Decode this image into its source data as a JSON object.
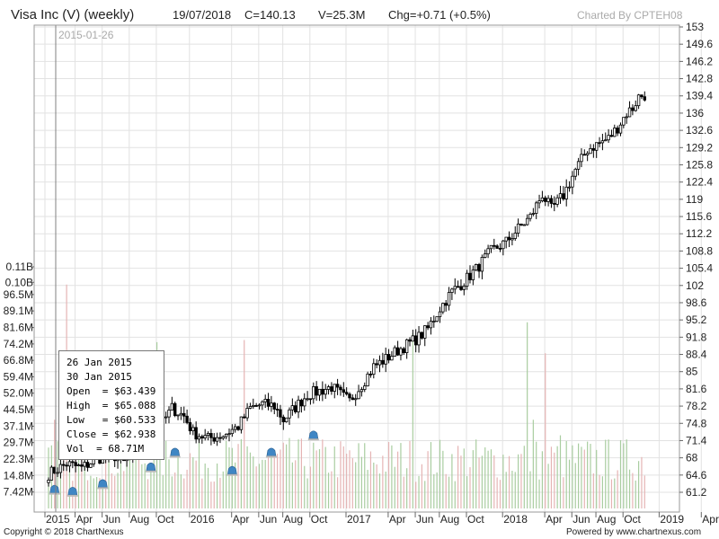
{
  "header": {
    "title": "Visa Inc (V) (weekly)",
    "date": "19/07/2018",
    "close": "C=140.13",
    "volume": "V=25.3M",
    "change": "Chg=+0.71 (+0.5%)",
    "brand": "Charted By CPTEH08"
  },
  "cursor_date": "2015-01-26",
  "tooltip": {
    "line1": "26 Jan 2015",
    "line2": "30 Jan 2015",
    "open": "Open  = $63.439",
    "high": "High  = $65.088",
    "low": "Low   = $60.533",
    "close": "Close = $62.938",
    "vol": "Vol  = 68.71M"
  },
  "footer": {
    "copyright": "Copyright © 2018 ChartNexus",
    "powered": "Powered by www.chartnexus.com"
  },
  "chart_data": {
    "type": "candlestick",
    "price_axis": {
      "min": 61.2,
      "max": 153,
      "ticks": [
        "153",
        "149.6",
        "146.2",
        "142.8",
        "139.4",
        "136",
        "132.6",
        "129.2",
        "125.8",
        "122.4",
        "119",
        "115.6",
        "112.2",
        "108.8",
        "105.4",
        "102",
        "98.6",
        "95.2",
        "91.8",
        "88.4",
        "85",
        "81.6",
        "78.2",
        "74.8",
        "71.4",
        "68",
        "64.6",
        "61.2"
      ]
    },
    "volume_axis": {
      "min": 0,
      "max": 110,
      "ticks": [
        "7.42M",
        "14.8M",
        "22.3M",
        "29.7M",
        "37.1M",
        "44.5M",
        "52.0M",
        "59.4M",
        "66.8M",
        "74.2M",
        "81.6M",
        "89.1M",
        "96.5M",
        "0.10B",
        "0.11B"
      ],
      "tick_values": [
        7.42,
        14.8,
        22.3,
        29.7,
        37.1,
        44.5,
        52.0,
        59.4,
        66.8,
        74.2,
        81.6,
        89.1,
        96.5,
        102,
        109
      ]
    },
    "time_axis": {
      "labels": [
        "2015",
        "Apr",
        "Jun",
        "Aug",
        "Oct",
        "2016",
        "Apr",
        "Jun",
        "Aug",
        "Oct",
        "2017",
        "Apr",
        "Jun",
        "Aug",
        "Oct",
        "2018",
        "Apr",
        "Jun",
        "Aug",
        "Oct",
        "2019",
        "Apr"
      ],
      "label_weeks": [
        0,
        10,
        19,
        28,
        37,
        48,
        62,
        71,
        79,
        88,
        100,
        114,
        123,
        131,
        140,
        152,
        166,
        175,
        183,
        192,
        204,
        218
      ]
    },
    "price_path": [
      [
        0,
        64.8
      ],
      [
        6,
        66.8
      ],
      [
        11,
        66.0
      ],
      [
        16,
        67.8
      ],
      [
        21,
        68.8
      ],
      [
        25,
        67.0
      ],
      [
        30,
        69.8
      ],
      [
        34,
        71.8
      ],
      [
        38,
        75.0
      ],
      [
        41,
        77.8
      ],
      [
        45,
        76.2
      ],
      [
        48,
        73.0
      ],
      [
        53,
        71.8
      ],
      [
        58,
        72.5
      ],
      [
        63,
        74.2
      ],
      [
        67,
        77.8
      ],
      [
        71,
        78.6
      ],
      [
        75,
        78.2
      ],
      [
        78,
        75.5
      ],
      [
        82,
        78.0
      ],
      [
        86,
        80.5
      ],
      [
        90,
        81.2
      ],
      [
        94,
        82.0
      ],
      [
        98,
        80.0
      ],
      [
        100,
        79.2
      ],
      [
        104,
        82.5
      ],
      [
        108,
        86.0
      ],
      [
        112,
        87.5
      ],
      [
        116,
        89.2
      ],
      [
        119,
        90.3
      ],
      [
        123,
        91.8
      ],
      [
        126,
        93.5
      ],
      [
        130,
        97.5
      ],
      [
        134,
        100.8
      ],
      [
        138,
        102.8
      ],
      [
        142,
        105.2
      ],
      [
        147,
        108.8
      ],
      [
        152,
        110.6
      ],
      [
        156,
        113.2
      ],
      [
        160,
        115.5
      ],
      [
        164,
        120.0
      ],
      [
        167,
        117.0
      ],
      [
        171,
        119.8
      ],
      [
        175,
        124.8
      ],
      [
        179,
        128.8
      ],
      [
        182,
        129.8
      ],
      [
        186,
        131.0
      ],
      [
        189,
        133.2
      ],
      [
        192,
        136.0
      ],
      [
        194,
        137.0
      ],
      [
        196,
        139.2
      ],
      [
        198,
        139.6
      ]
    ],
    "volume_range_m": [
      12,
      32
    ],
    "volume_spikes": [
      [
        2,
        40
      ],
      [
        6,
        101
      ],
      [
        36,
        75
      ],
      [
        65,
        76
      ],
      [
        121,
        79
      ],
      [
        159,
        84
      ],
      [
        161,
        40
      ],
      [
        165,
        70
      ],
      [
        170,
        33
      ]
    ],
    "events": [
      {
        "week": 2,
        "price": 61.8,
        "name": "event-marker"
      },
      {
        "week": 8,
        "price": 61.4,
        "name": "event-marker"
      },
      {
        "week": 18,
        "price": 62.9,
        "name": "event-marker"
      },
      {
        "week": 34,
        "price": 66.2,
        "name": "event-marker"
      },
      {
        "week": 42,
        "price": 69.1,
        "name": "event-marker"
      },
      {
        "week": 61,
        "price": 65.5,
        "name": "event-marker"
      },
      {
        "week": 74,
        "price": 69.1,
        "name": "event-marker"
      },
      {
        "week": 88,
        "price": 72.5,
        "name": "event-marker"
      }
    ],
    "colors": {
      "volume_up": "#a9cda0",
      "volume_down": "#e5b4b4",
      "candle": "#000000",
      "event": "#3f86c4"
    }
  }
}
